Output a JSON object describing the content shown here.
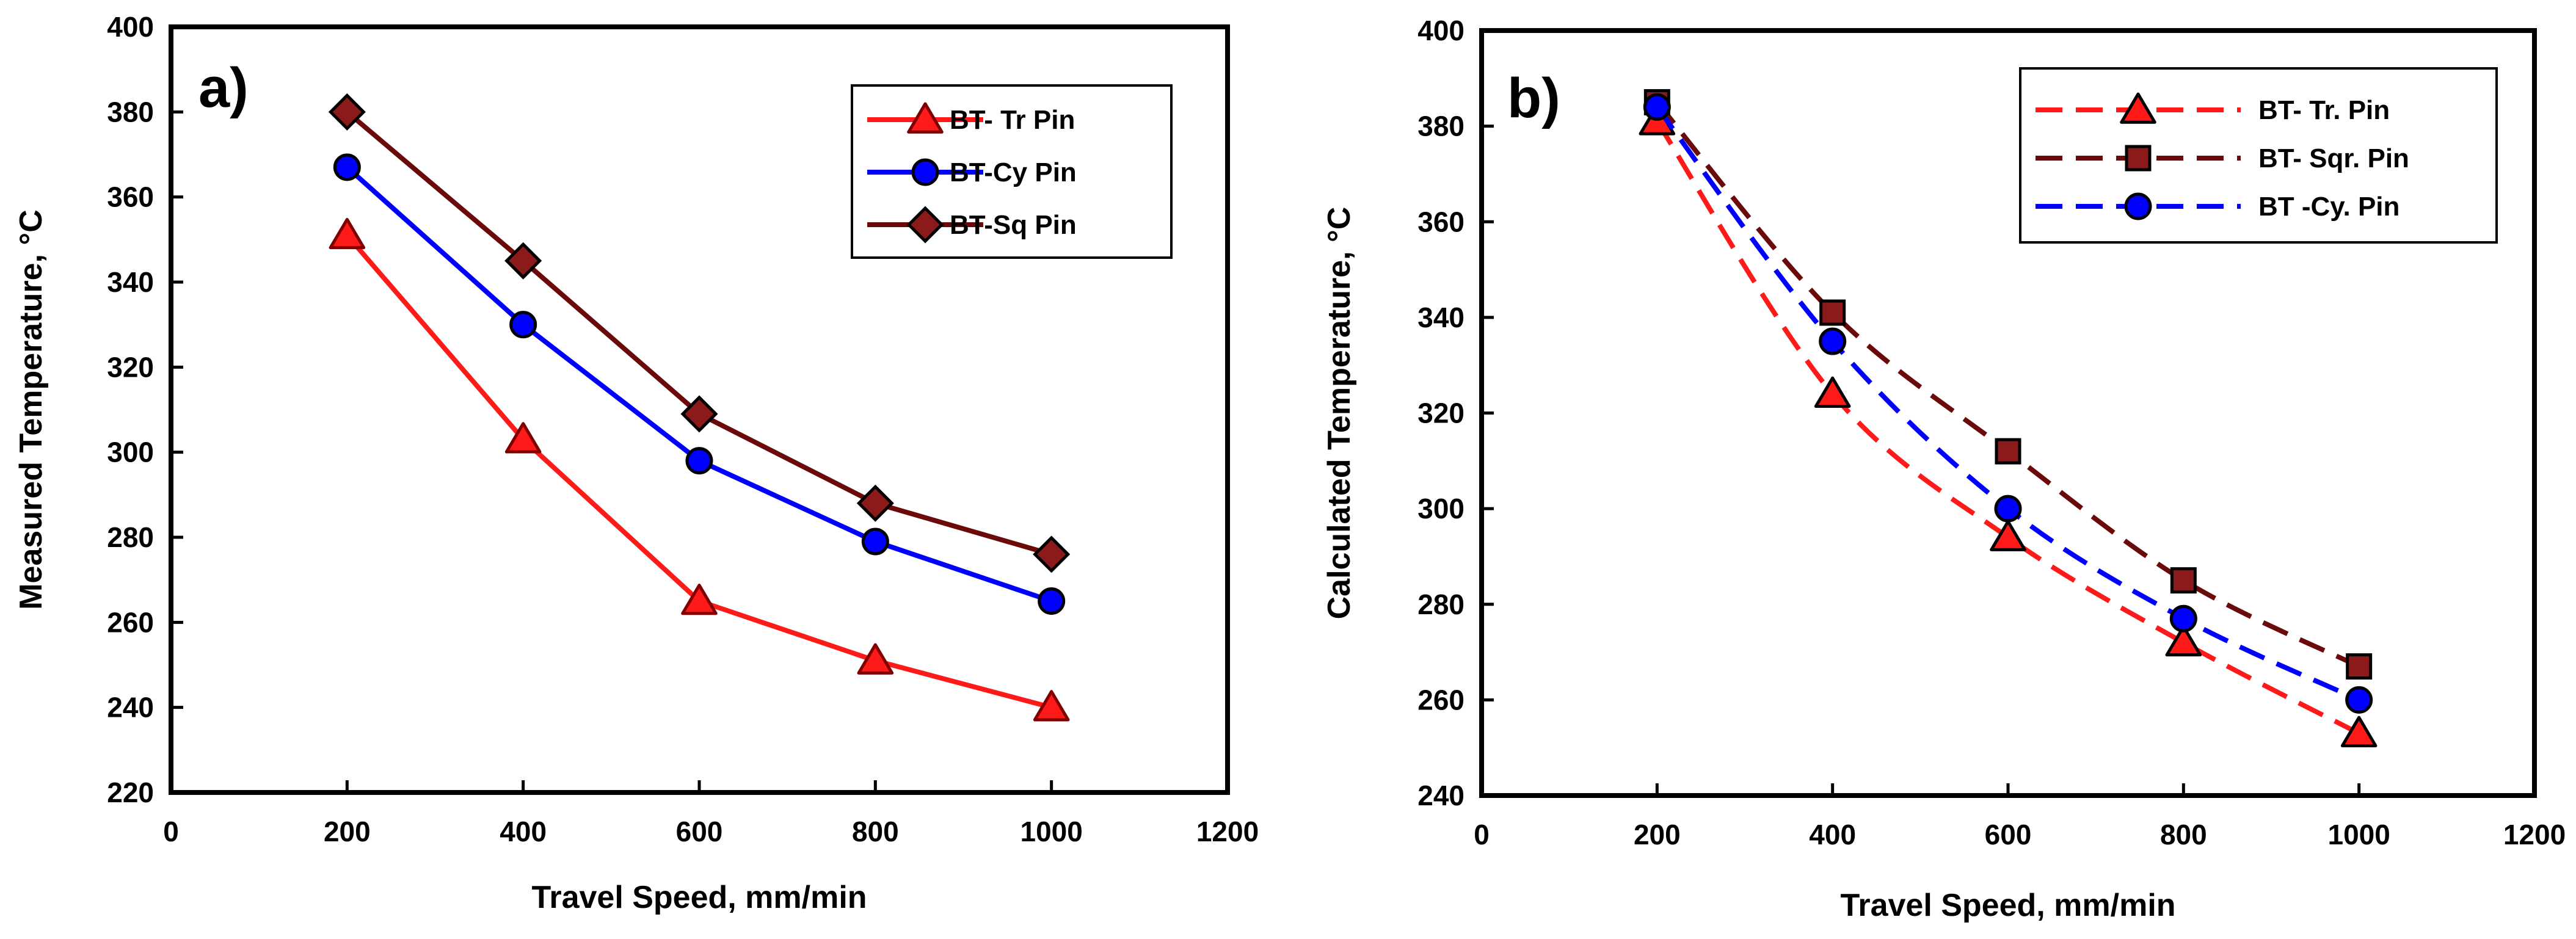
{
  "chart_data": [
    {
      "type": "line",
      "panel_label": "a)",
      "title": "",
      "xlabel": "Travel Speed, mm/min",
      "ylabel": "Measured Temperature, ",
      "ylabel_unit": "°C",
      "xlim": [
        0,
        1200
      ],
      "ylim": [
        220,
        400
      ],
      "xticks": [
        "0",
        "200",
        "400",
        "600",
        "800",
        "1000",
        "1200"
      ],
      "yticks": [
        "220",
        "240",
        "260",
        "280",
        "300",
        "320",
        "340",
        "360",
        "380",
        "400"
      ],
      "legend_position": "top-right",
      "x": [
        200,
        400,
        600,
        800,
        1000
      ],
      "series": [
        {
          "name": "BT- Tr Pin",
          "marker": "triangle",
          "line": "solid",
          "color": "#ff1a1a",
          "edge": "#800000",
          "values": [
            351,
            303,
            265,
            251,
            240
          ]
        },
        {
          "name": "BT-Cy Pin",
          "marker": "circle",
          "line": "solid",
          "color": "#0000ff",
          "edge": "#000000",
          "values": [
            367,
            330,
            298,
            279,
            265
          ]
        },
        {
          "name": "BT-Sq Pin",
          "marker": "diamond",
          "line": "solid",
          "color": "#6b0a0a",
          "edge": "#000000",
          "fill": "#8b1a1a",
          "values": [
            380,
            345,
            309,
            288,
            276
          ]
        }
      ]
    },
    {
      "type": "line",
      "panel_label": "b)",
      "title": "",
      "xlabel": "Travel Speed, mm/min",
      "ylabel": "Calculated Temperature, ",
      "ylabel_unit": "°C",
      "xlim": [
        0,
        1200
      ],
      "ylim": [
        240,
        400
      ],
      "xticks": [
        "0",
        "200",
        "400",
        "600",
        "800",
        "1000",
        "1200"
      ],
      "yticks": [
        "240",
        "260",
        "280",
        "300",
        "320",
        "340",
        "360",
        "380",
        "400"
      ],
      "legend_position": "top-right",
      "x": [
        200,
        400,
        600,
        800,
        1000
      ],
      "series": [
        {
          "name": "BT- Tr. Pin",
          "marker": "triangle",
          "line": "dashed",
          "color": "#ff1a1a",
          "edge": "#000000",
          "fill": "#ff1a1a",
          "values": [
            381,
            324,
            294,
            272,
            253
          ]
        },
        {
          "name": "BT- Sqr. Pin",
          "marker": "square",
          "line": "dashed",
          "color": "#6b0a0a",
          "edge": "#000000",
          "fill": "#8b1a1a",
          "values": [
            385,
            341,
            312,
            285,
            267
          ]
        },
        {
          "name": "BT -Cy. Pin",
          "marker": "circle",
          "line": "dashed",
          "color": "#0000ff",
          "edge": "#000000",
          "fill": "#0000ff",
          "values": [
            384,
            335,
            300,
            277,
            260
          ]
        }
      ]
    }
  ]
}
